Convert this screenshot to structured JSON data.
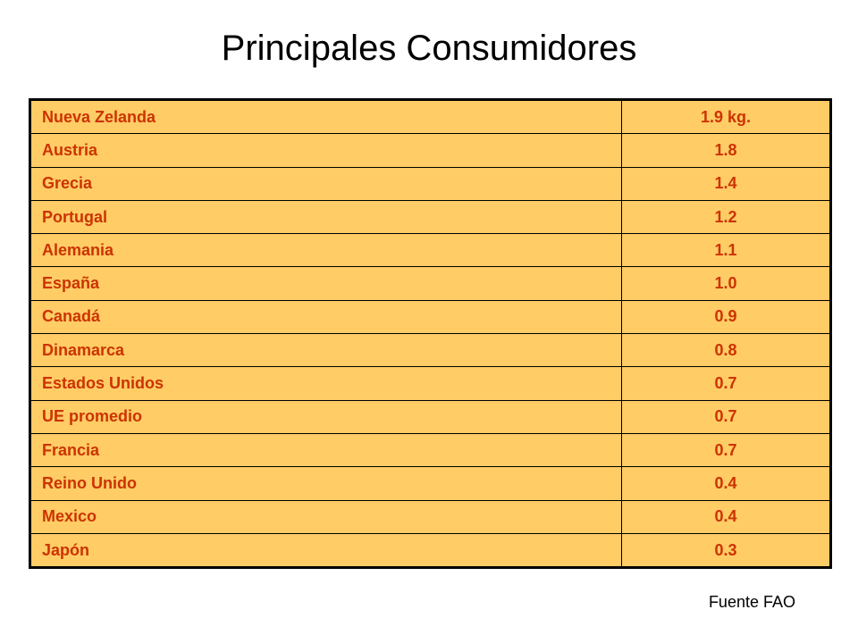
{
  "slide": {
    "title": "Principales Consumidores",
    "source": "Fuente FAO"
  },
  "table": {
    "rows": [
      {
        "country": "Nueva Zelanda",
        "value": "1.9 kg."
      },
      {
        "country": "Austria",
        "value": "1.8"
      },
      {
        "country": "Grecia",
        "value": "1.4"
      },
      {
        "country": "Portugal",
        "value": "1.2"
      },
      {
        "country": "Alemania",
        "value": "1.1"
      },
      {
        "country": "España",
        "value": "1.0"
      },
      {
        "country": "Canadá",
        "value": "0.9"
      },
      {
        "country": "Dinamarca",
        "value": "0.8"
      },
      {
        "country": "Estados Unidos",
        "value": "0.7"
      },
      {
        "country": "UE promedio",
        "value": "0.7"
      },
      {
        "country": "Francia",
        "value": "0.7"
      },
      {
        "country": "Reino Unido",
        "value": "0.4"
      },
      {
        "country": "Mexico",
        "value": "0.4"
      },
      {
        "country": "Japón",
        "value": "0.3"
      }
    ]
  },
  "colors": {
    "cell_background": "#FFCC66",
    "cell_text": "#CC3300",
    "border": "#000000"
  }
}
